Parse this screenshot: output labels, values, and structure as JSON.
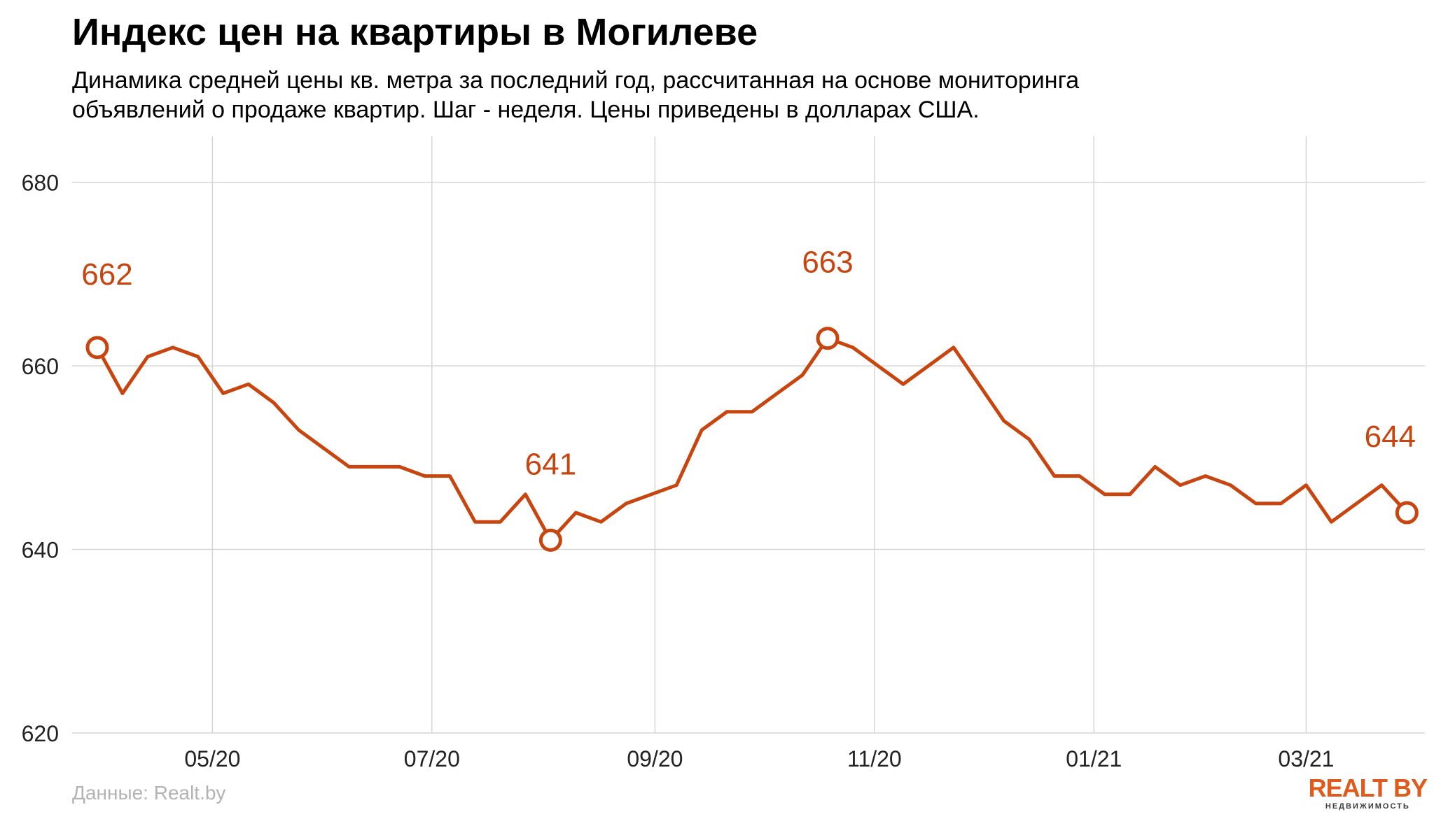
{
  "header": {
    "title": "Индекс цен на квартиры в Могилеве",
    "subtitle_line1": "Динамика средней цены кв. метра за последний год, рассчитанная на основе мониторинга",
    "subtitle_line2": "объявлений о продаже квартир. Шаг - неделя. Цены приведены в долларах США."
  },
  "footer": {
    "source": "Данные: Realt.by",
    "logo_text": "REALT BY",
    "logo_subtext": "НЕДВИЖИМОСТЬ"
  },
  "colors": {
    "line": "#c9450f",
    "grid": "#d6d6d6",
    "logo": "#e05a1c"
  },
  "chart_data": {
    "type": "line",
    "title": "Индекс цен на квартиры в Могилеве",
    "xlabel": "",
    "ylabel": "",
    "ylim": [
      620,
      685
    ],
    "yticks": [
      620,
      640,
      660,
      680
    ],
    "xticks": [
      {
        "date": "2020-05-01",
        "label": "05/20"
      },
      {
        "date": "2020-07-01",
        "label": "07/20"
      },
      {
        "date": "2020-09-01",
        "label": "09/20"
      },
      {
        "date": "2020-11-01",
        "label": "11/20"
      },
      {
        "date": "2021-01-01",
        "label": "01/21"
      },
      {
        "date": "2021-03-01",
        "label": "03/21"
      }
    ],
    "grid": true,
    "series": [
      {
        "name": "",
        "x": [
          "2020-03-30",
          "2020-04-06",
          "2020-04-13",
          "2020-04-20",
          "2020-04-27",
          "2020-05-04",
          "2020-05-11",
          "2020-05-18",
          "2020-05-25",
          "2020-06-01",
          "2020-06-08",
          "2020-06-15",
          "2020-06-22",
          "2020-06-29",
          "2020-07-06",
          "2020-07-13",
          "2020-07-20",
          "2020-07-27",
          "2020-08-03",
          "2020-08-10",
          "2020-08-17",
          "2020-08-24",
          "2020-08-31",
          "2020-09-07",
          "2020-09-14",
          "2020-09-21",
          "2020-09-28",
          "2020-10-05",
          "2020-10-12",
          "2020-10-19",
          "2020-10-26",
          "2020-11-02",
          "2020-11-09",
          "2020-11-16",
          "2020-11-23",
          "2020-11-30",
          "2020-12-07",
          "2020-12-14",
          "2020-12-21",
          "2020-12-28",
          "2021-01-04",
          "2021-01-11",
          "2021-01-18",
          "2021-01-25",
          "2021-02-01",
          "2021-02-08",
          "2021-02-15",
          "2021-02-22",
          "2021-03-01",
          "2021-03-08",
          "2021-03-15",
          "2021-03-22",
          "2021-03-29"
        ],
        "values": [
          662,
          657,
          661,
          662,
          661,
          657,
          658,
          656,
          653,
          651,
          649,
          649,
          649,
          648,
          648,
          643,
          643,
          646,
          641,
          644,
          643,
          645,
          646,
          647,
          653,
          655,
          655,
          657,
          659,
          663,
          662,
          660,
          658,
          660,
          662,
          658,
          654,
          652,
          648,
          648,
          646,
          646,
          649,
          647,
          648,
          647,
          645,
          645,
          647,
          643,
          645,
          647,
          644
        ]
      }
    ],
    "annotations": [
      {
        "date": "2020-03-30",
        "value": 662,
        "label": "662"
      },
      {
        "date": "2020-08-03",
        "value": 641,
        "label": "641"
      },
      {
        "date": "2020-10-19",
        "value": 663,
        "label": "663"
      },
      {
        "date": "2021-03-29",
        "value": 644,
        "label": "644"
      }
    ]
  }
}
